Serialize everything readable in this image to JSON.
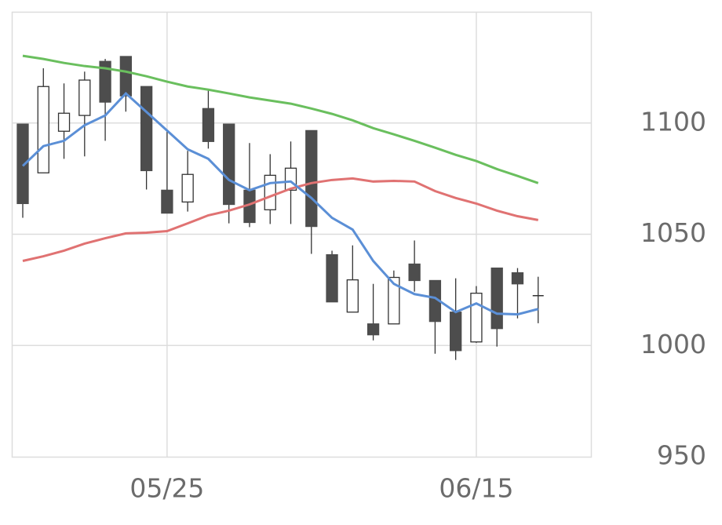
{
  "chart_data": {
    "type": "candlestick",
    "categories": [
      null,
      null,
      null,
      null,
      null,
      null,
      null,
      "05/25",
      null,
      null,
      null,
      null,
      null,
      null,
      null,
      null,
      null,
      null,
      null,
      null,
      null,
      null,
      "06/15",
      null,
      null,
      null
    ],
    "open": [
      1099.5,
      1077.6,
      1096.3,
      1103.4,
      1127.7,
      1129.9,
      1116.4,
      1069.8,
      1064.5,
      1106.5,
      1099.5,
      1069.8,
      1061,
      1069.8,
      1096.6,
      1040.8,
      1015,
      1009.7,
      1009.7,
      1036.6,
      1029.2,
      1015,
      1001.6,
      1034.8,
      1032.7,
      1022.4
    ],
    "high": [
      1099.5,
      1124.6,
      1117.8,
      1123.1,
      1128.8,
      1129.9,
      1116.4,
      1096.3,
      1087.5,
      1115,
      1099.5,
      1091,
      1086,
      1091.7,
      1096.6,
      1042.6,
      1045,
      1027.7,
      1033.7,
      1047.2,
      1029.2,
      1030.2,
      1026.7,
      1034.8,
      1034.8,
      1030.9
    ],
    "low": [
      1057.4,
      1077.6,
      1083.9,
      1085,
      1092,
      1105.1,
      1070.1,
      1059.5,
      1060.2,
      1088.5,
      1054.9,
      1053.2,
      1054.6,
      1054.6,
      1041.2,
      1019.6,
      1015,
      1002.3,
      1009.7,
      1024.2,
      996.3,
      993.5,
      1001.2,
      999.5,
      1012.2,
      1010
    ],
    "close": [
      1063.8,
      1116.4,
      1104.4,
      1119.3,
      1109.4,
      1112.2,
      1078.6,
      1059.5,
      1076.9,
      1091.7,
      1063.4,
      1055.3,
      1076.5,
      1079.7,
      1053.5,
      1019.6,
      1029.5,
      1004.8,
      1030.6,
      1029.2,
      1010.8,
      997.7,
      1023.5,
      1007.6,
      1027.7,
      1022.4
    ],
    "up_color": "#ffffff",
    "down_color": "#4d4d4d",
    "lines": [
      {
        "color": "#6abf5e",
        "values": [
          1130.2,
          1128.8,
          1127,
          1125.6,
          1124.6,
          1123.1,
          1121,
          1118.6,
          1116.4,
          1115,
          1113.3,
          1111.5,
          1110.1,
          1108.7,
          1106.5,
          1104.1,
          1101.2,
          1097.7,
          1094.9,
          1092,
          1088.9,
          1085.7,
          1082.9,
          1079.3,
          1076.2,
          1073
        ]
      },
      {
        "color": "#e07272",
        "values": [
          1038,
          1040.1,
          1042.6,
          1045.8,
          1048.2,
          1050.4,
          1050.7,
          1051.4,
          1054.9,
          1058.5,
          1060.6,
          1063.4,
          1067,
          1070.5,
          1073,
          1074.4,
          1075.1,
          1073.7,
          1074,
          1073.7,
          1069.4,
          1066.3,
          1063.8,
          1060.6,
          1058.1,
          1056.4
        ]
      },
      {
        "color": "#5b8fd6",
        "values": [
          1080.7,
          1089.6,
          1092,
          1099,
          1103.4,
          1113.3,
          1105,
          1096.6,
          1088.2,
          1083.9,
          1074.4,
          1069.8,
          1073,
          1073.7,
          1066.3,
          1057.4,
          1052.1,
          1038,
          1027.7,
          1023.1,
          1021.4,
          1015,
          1018.9,
          1014.3,
          1014,
          1016.4
        ]
      }
    ],
    "ylim": [
      950,
      1150
    ],
    "yticks": [
      950,
      1000,
      1050,
      1100
    ],
    "grid": true
  }
}
